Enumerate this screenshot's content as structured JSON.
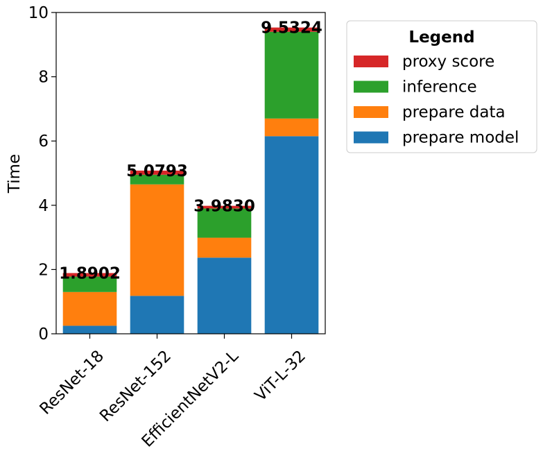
{
  "chart_data": {
    "type": "bar",
    "stacked": true,
    "categories": [
      "ResNet-18",
      "ResNet-152",
      "EfficientNetV2-L",
      "ViT-L-32"
    ],
    "series": [
      {
        "name": "prepare model",
        "color": "#1f77b4",
        "values": [
          0.25,
          1.18,
          2.37,
          6.15
        ]
      },
      {
        "name": "prepare data",
        "color": "#ff7f0e",
        "values": [
          1.05,
          3.47,
          0.62,
          0.55
        ]
      },
      {
        "name": "inference",
        "color": "#2ca02c",
        "values": [
          0.48,
          0.3,
          0.91,
          2.7
        ]
      },
      {
        "name": "proxy score",
        "color": "#d62728",
        "values": [
          0.1102,
          0.1293,
          0.083,
          0.1324
        ]
      }
    ],
    "totals": [
      "1.8902",
      "5.0793",
      "3.9830",
      "9.5324"
    ],
    "ylabel": "Time",
    "ylim": [
      0,
      10
    ],
    "yticks": [
      0,
      2,
      4,
      6,
      8,
      10
    ],
    "legend": {
      "title": "Legend",
      "placement": "outside-top-right",
      "order": [
        "proxy score",
        "inference",
        "prepare data",
        "prepare model"
      ]
    },
    "grid": false
  }
}
